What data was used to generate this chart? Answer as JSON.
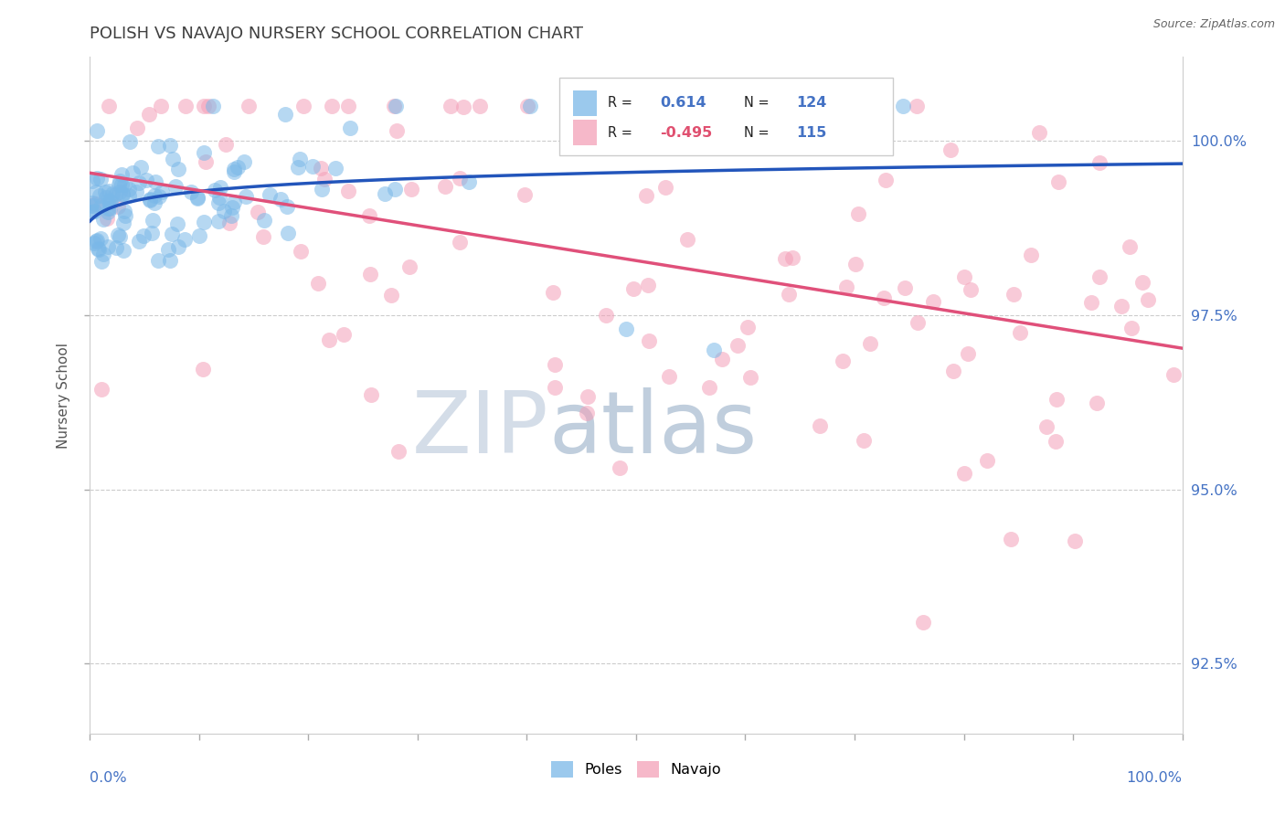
{
  "title": "POLISH VS NAVAJO NURSERY SCHOOL CORRELATION CHART",
  "source": "Source: ZipAtlas.com",
  "ylabel": "Nursery School",
  "xlim": [
    0.0,
    100.0
  ],
  "ylim": [
    91.5,
    101.2
  ],
  "yticks": [
    92.5,
    95.0,
    97.5,
    100.0
  ],
  "ytick_labels": [
    "92.5%",
    "95.0%",
    "97.5%",
    "100.0%"
  ],
  "poles_R": 0.614,
  "poles_N": 124,
  "navajo_R": -0.495,
  "navajo_N": 115,
  "poles_color": "#7ab8e8",
  "navajo_color": "#f4a0b8",
  "poles_line_color": "#2255bb",
  "navajo_line_color": "#e0507a",
  "watermark_zip_color": "#d0dce8",
  "watermark_atlas_color": "#c8d8e8",
  "background_color": "#ffffff",
  "grid_color": "#cccccc",
  "title_color": "#404040",
  "title_fontsize": 13,
  "axis_label_color": "#4472c4",
  "navajo_R_color": "#e05070",
  "seed": 42
}
